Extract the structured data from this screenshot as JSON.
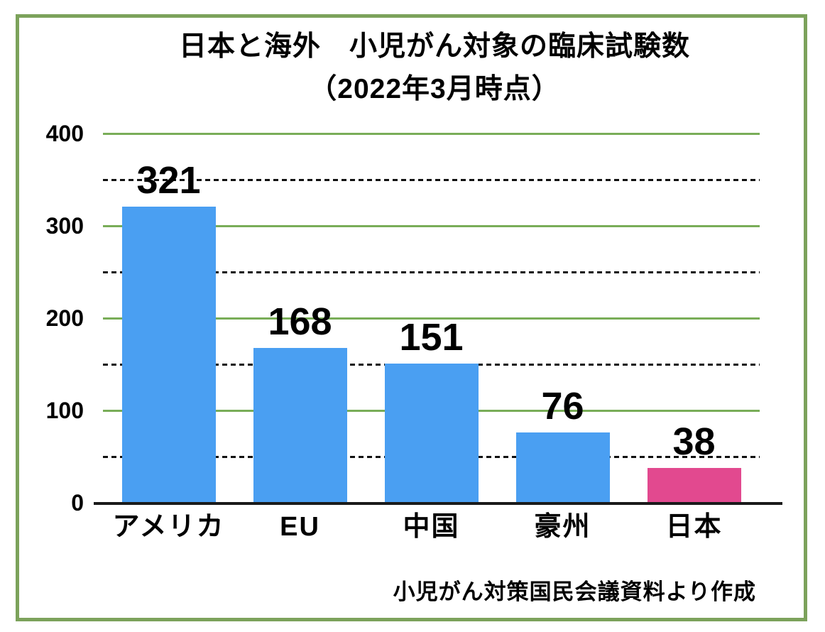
{
  "page": {
    "title_line1": "日本と海外　小児がん対象の臨床試験数",
    "title_line2": "（2022年3月時点）",
    "source_note": "小児がん対策国民会議資料より作成"
  },
  "colors": {
    "bar_default": "#4A9FF2",
    "bar_highlight": "#E2498F",
    "frame_border": "#7CA25B",
    "gridline_major": "#79AD58",
    "gridline_minor": "#111111",
    "axis_line": "#1A1A1A",
    "text": "#000000"
  },
  "chart_data": {
    "type": "bar",
    "title": "日本と海外　小児がん対象の臨床試験数（2022年3月時点）",
    "categories": [
      "アメリカ",
      "EU",
      "中国",
      "豪州",
      "日本"
    ],
    "values": [
      321,
      168,
      151,
      76,
      38
    ],
    "value_labels": [
      "321",
      "168",
      "151",
      "76",
      "38"
    ],
    "highlight_category": "日本",
    "bar_colors": [
      "#4A9FF2",
      "#4A9FF2",
      "#4A9FF2",
      "#4A9FF2",
      "#E2498F"
    ],
    "y_ticks": [
      0,
      100,
      200,
      300,
      400
    ],
    "ylim": [
      0,
      400
    ],
    "gridlines": {
      "major_step": 100,
      "minor_step": 50,
      "major_style": "solid-green",
      "minor_style": "dotted-black"
    },
    "legend": "none",
    "xlabel": "",
    "ylabel": "",
    "source": "小児がん対策国民会議資料より作成"
  }
}
